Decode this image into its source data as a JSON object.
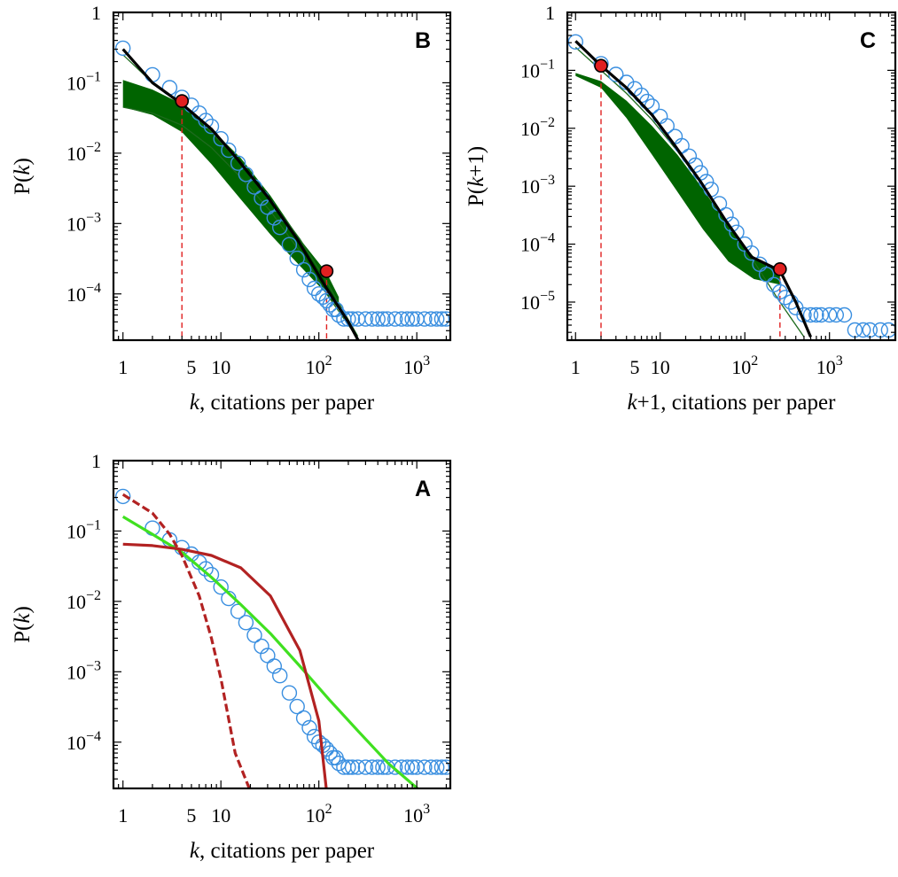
{
  "chart_data": [
    {
      "panel": "B",
      "type": "scatter",
      "xlabel_var": "k",
      "xlabel_rest": ", citations per paper",
      "ylabel_pre": "P(",
      "ylabel_var": "k",
      "ylabel_post": ")",
      "xscale": "log",
      "yscale": "log",
      "xlim": [
        0.8,
        2200
      ],
      "ylim": [
        2.2e-05,
        1
      ],
      "xtick_labels": [
        {
          "v": 1,
          "base": "1",
          "exp": ""
        },
        {
          "v": 5,
          "base": "5",
          "exp": ""
        },
        {
          "v": 10,
          "base": "10",
          "exp": ""
        },
        {
          "v": 100,
          "base": "10",
          "exp": "2"
        },
        {
          "v": 1000,
          "base": "10",
          "exp": "3"
        }
      ],
      "ytick_labels": [
        {
          "v": 1,
          "base": "1",
          "exp": ""
        },
        {
          "v": 0.1,
          "base": "10",
          "exp": "−1"
        },
        {
          "v": 0.01,
          "base": "10",
          "exp": "−2"
        },
        {
          "v": 0.001,
          "base": "10",
          "exp": "−3"
        },
        {
          "v": 0.0001,
          "base": "10",
          "exp": "−4"
        }
      ],
      "series": [
        {
          "kind": "empirical",
          "color": "#3a8fe0",
          "marker": "open-circle",
          "x": [
            1,
            2,
            3,
            4,
            5,
            6,
            7,
            8,
            10,
            12,
            15,
            18,
            22,
            26,
            30,
            35,
            40,
            50,
            60,
            70,
            80,
            90,
            100,
            110,
            120,
            130,
            140,
            150,
            160,
            180,
            200,
            220,
            250,
            300,
            350,
            400,
            450,
            500,
            600,
            700,
            800,
            900,
            1000,
            1200,
            1400,
            1600,
            1800,
            2000
          ],
          "y": [
            0.31,
            0.13,
            0.085,
            0.062,
            0.048,
            0.037,
            0.029,
            0.024,
            0.016,
            0.011,
            0.0072,
            0.005,
            0.0033,
            0.0023,
            0.0017,
            0.0012,
            0.00088,
            0.0005,
            0.00032,
            0.00022,
            0.00016,
            0.00012,
            0.0001,
            9e-05,
            8e-05,
            7e-05,
            6e-05,
            6e-05,
            5e-05,
            4.4e-05,
            4.4e-05,
            4.4e-05,
            4.4e-05,
            4.4e-05,
            4.4e-05,
            4.4e-05,
            4.4e-05,
            4.4e-05,
            4.4e-05,
            4.4e-05,
            4.4e-05,
            4.4e-05,
            4.4e-05,
            4.4e-05,
            4.4e-05,
            4.4e-05,
            4.4e-05,
            4.4e-05
          ]
        },
        {
          "kind": "fit",
          "color": "#000000",
          "x": [
            1,
            2,
            4,
            8,
            15,
            30,
            60,
            120,
            200,
            300
          ],
          "y": [
            0.3,
            0.1,
            0.05,
            0.022,
            0.008,
            0.0024,
            0.0006,
            0.00012,
            4e-05,
            1.4e-05
          ]
        }
      ],
      "shaded_band": {
        "color": "#006400",
        "x": [
          1,
          2,
          4,
          8,
          16,
          32,
          64,
          120,
          160
        ],
        "upper": [
          0.11,
          0.08,
          0.05,
          0.022,
          0.0085,
          0.0025,
          0.0006,
          0.0002,
          9e-05
        ],
        "lower": [
          0.045,
          0.035,
          0.02,
          0.007,
          0.0022,
          0.0007,
          0.00025,
          0.0001,
          6e-05
        ]
      },
      "thin_curves": [
        {
          "color": "#1e6b1e",
          "x": [
            1,
            2,
            4,
            8,
            16,
            32,
            64,
            120,
            250
          ],
          "y": [
            0.25,
            0.1,
            0.05,
            0.02,
            0.007,
            0.0022,
            0.0006,
            0.00015,
            2.5e-05
          ]
        },
        {
          "color": "#1e6b1e",
          "x": [
            1,
            2,
            4,
            8,
            16,
            32,
            64,
            120,
            270
          ],
          "y": [
            0.045,
            0.037,
            0.025,
            0.012,
            0.0045,
            0.0015,
            0.0004,
            0.0001,
            2e-05
          ]
        }
      ],
      "markers": [
        {
          "x": 4,
          "y": 0.055,
          "color": "#e02020"
        },
        {
          "x": 120,
          "y": 0.00021,
          "color": "#e02020"
        }
      ],
      "vlines": [
        {
          "x": 4,
          "color": "#e02020"
        },
        {
          "x": 120,
          "color": "#e02020"
        }
      ]
    },
    {
      "panel": "C",
      "type": "scatter",
      "xlabel_var": "k",
      "xlabel_rest": "+1,  citations per paper",
      "ylabel_pre": "P(",
      "ylabel_var": "k",
      "ylabel_post": "+1)",
      "xscale": "log",
      "yscale": "log",
      "xlim": [
        0.8,
        6000
      ],
      "ylim": [
        2.2e-06,
        1
      ],
      "xtick_labels": [
        {
          "v": 1,
          "base": "1",
          "exp": ""
        },
        {
          "v": 5,
          "base": "5",
          "exp": ""
        },
        {
          "v": 10,
          "base": "10",
          "exp": ""
        },
        {
          "v": 100,
          "base": "10",
          "exp": "2"
        },
        {
          "v": 1000,
          "base": "10",
          "exp": "3"
        }
      ],
      "ytick_labels": [
        {
          "v": 1,
          "base": "1",
          "exp": ""
        },
        {
          "v": 0.1,
          "base": "10",
          "exp": "−1"
        },
        {
          "v": 0.01,
          "base": "10",
          "exp": "−2"
        },
        {
          "v": 0.001,
          "base": "10",
          "exp": "−3"
        },
        {
          "v": 0.0001,
          "base": "10",
          "exp": "−4"
        },
        {
          "v": 1e-05,
          "base": "10",
          "exp": "−5"
        }
      ],
      "series": [
        {
          "kind": "empirical",
          "color": "#3a8fe0",
          "marker": "open-circle",
          "x": [
            1,
            2,
            3,
            4,
            5,
            6,
            7,
            8,
            10,
            12,
            15,
            18,
            22,
            26,
            30,
            35,
            40,
            50,
            60,
            70,
            80,
            100,
            120,
            150,
            180,
            220,
            260,
            300,
            350,
            400,
            500,
            600,
            700,
            800,
            1000,
            1200,
            1500,
            2000,
            2500,
            3000,
            4000,
            5000
          ],
          "y": [
            0.31,
            0.13,
            0.085,
            0.062,
            0.048,
            0.037,
            0.029,
            0.024,
            0.016,
            0.011,
            0.0072,
            0.005,
            0.0033,
            0.0023,
            0.0017,
            0.0012,
            0.00088,
            0.0005,
            0.00032,
            0.00022,
            0.00016,
            0.0001,
            7e-05,
            4.5e-05,
            3e-05,
            2e-05,
            1.5e-05,
            1.2e-05,
            1e-05,
            8e-06,
            6e-06,
            6e-06,
            6e-06,
            6e-06,
            6e-06,
            6e-06,
            6e-06,
            3.3e-06,
            3.3e-06,
            3.3e-06,
            3.3e-06,
            3.3e-06
          ]
        },
        {
          "kind": "fit",
          "color": "#000000",
          "x": [
            1,
            2,
            4,
            8,
            15,
            30,
            60,
            120,
            260,
            400,
            600
          ],
          "y": [
            0.32,
            0.12,
            0.05,
            0.017,
            0.005,
            0.0012,
            0.00025,
            6e-05,
            3.5e-05,
            1e-05,
            2.5e-06
          ]
        }
      ],
      "shaded_band": {
        "color": "#006400",
        "x": [
          1,
          2,
          4,
          8,
          16,
          32,
          64,
          128,
          260
        ],
        "upper": [
          0.09,
          0.065,
          0.03,
          0.011,
          0.0035,
          0.0009,
          0.0002,
          6e-05,
          3.5e-05
        ],
        "lower": [
          0.08,
          0.05,
          0.015,
          0.0035,
          0.0008,
          0.00018,
          5e-05,
          2.5e-05,
          2e-05
        ]
      },
      "thin_curves": [
        {
          "color": "#1e6b1e",
          "x": [
            1,
            2,
            4,
            8,
            16,
            32,
            64,
            128,
            260,
            500
          ],
          "y": [
            0.25,
            0.1,
            0.04,
            0.014,
            0.004,
            0.001,
            0.00022,
            5e-05,
            1e-05,
            2.5e-06
          ]
        }
      ],
      "markers": [
        {
          "x": 2,
          "y": 0.12,
          "color": "#e02020"
        },
        {
          "x": 260,
          "y": 3.7e-05,
          "color": "#e02020"
        }
      ],
      "vlines": [
        {
          "x": 2,
          "color": "#e02020"
        },
        {
          "x": 260,
          "color": "#e02020"
        }
      ]
    },
    {
      "panel": "A",
      "type": "scatter",
      "xlabel_var": "k",
      "xlabel_rest": ", citations per paper",
      "ylabel_pre": "P(",
      "ylabel_var": "k",
      "ylabel_post": ")",
      "xscale": "log",
      "yscale": "log",
      "xlim": [
        0.8,
        2200
      ],
      "ylim": [
        2.2e-05,
        1
      ],
      "xtick_labels": [
        {
          "v": 1,
          "base": "1",
          "exp": ""
        },
        {
          "v": 5,
          "base": "5",
          "exp": ""
        },
        {
          "v": 10,
          "base": "10",
          "exp": ""
        },
        {
          "v": 100,
          "base": "10",
          "exp": "2"
        },
        {
          "v": 1000,
          "base": "10",
          "exp": "3"
        }
      ],
      "ytick_labels": [
        {
          "v": 1,
          "base": "1",
          "exp": ""
        },
        {
          "v": 0.1,
          "base": "10",
          "exp": "−1"
        },
        {
          "v": 0.01,
          "base": "10",
          "exp": "−2"
        },
        {
          "v": 0.001,
          "base": "10",
          "exp": "−3"
        },
        {
          "v": 0.0001,
          "base": "10",
          "exp": "−4"
        }
      ],
      "series": [
        {
          "kind": "empirical",
          "color": "#3a8fe0",
          "marker": "open-circle",
          "x": [
            1,
            2,
            3,
            4,
            5,
            6,
            7,
            8,
            10,
            12,
            15,
            18,
            22,
            26,
            30,
            35,
            40,
            50,
            60,
            70,
            80,
            90,
            100,
            110,
            120,
            130,
            140,
            150,
            160,
            180,
            200,
            220,
            250,
            300,
            350,
            400,
            450,
            500,
            600,
            700,
            800,
            900,
            1000,
            1200,
            1400,
            1600,
            1800,
            2000
          ],
          "y": [
            0.31,
            0.11,
            0.075,
            0.058,
            0.047,
            0.036,
            0.029,
            0.024,
            0.016,
            0.011,
            0.0072,
            0.005,
            0.0033,
            0.0023,
            0.0017,
            0.0012,
            0.00088,
            0.0005,
            0.00032,
            0.00022,
            0.00016,
            0.00012,
            0.0001,
            9e-05,
            8e-05,
            7e-05,
            6e-05,
            6e-05,
            5e-05,
            4.4e-05,
            4.4e-05,
            4.4e-05,
            4.4e-05,
            4.4e-05,
            4.4e-05,
            4.4e-05,
            4.4e-05,
            4.4e-05,
            4.4e-05,
            4.4e-05,
            4.4e-05,
            4.4e-05,
            4.4e-05,
            4.4e-05,
            4.4e-05,
            4.4e-05,
            4.4e-05,
            4.4e-05
          ]
        },
        {
          "kind": "fit",
          "color": "#40e020",
          "x": [
            1,
            2,
            4,
            8,
            16,
            32,
            64,
            128,
            256,
            512,
            1100
          ],
          "y": [
            0.16,
            0.09,
            0.05,
            0.022,
            0.009,
            0.0035,
            0.0012,
            0.0004,
            0.00014,
            5e-05,
            2e-05
          ]
        },
        {
          "kind": "fit",
          "color": "#b22222",
          "x": [
            1,
            2,
            4,
            8,
            16,
            32,
            64,
            100,
            120
          ],
          "y": [
            0.065,
            0.062,
            0.055,
            0.045,
            0.03,
            0.012,
            0.002,
            0.0002,
            2e-05
          ]
        },
        {
          "kind": "fit",
          "color": "#b22222",
          "dashed": true,
          "x": [
            1,
            2,
            3,
            4,
            6,
            8,
            10,
            14,
            20
          ],
          "y": [
            0.33,
            0.18,
            0.09,
            0.045,
            0.012,
            0.003,
            0.0008,
            7e-05,
            2e-05
          ]
        }
      ],
      "shaded_band": null,
      "thin_curves": [],
      "markers": [],
      "vlines": []
    }
  ]
}
